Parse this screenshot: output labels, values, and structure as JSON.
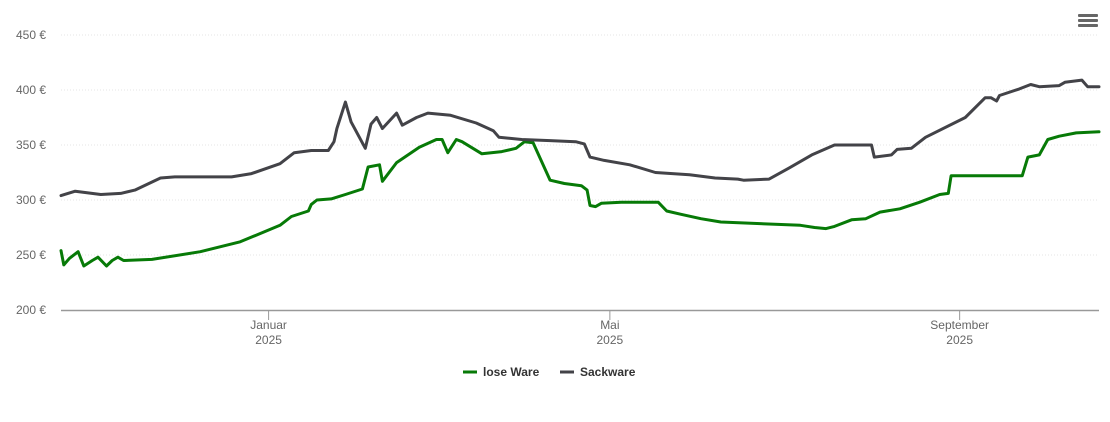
{
  "chart_data": {
    "type": "line",
    "title": "",
    "xlabel": "",
    "ylabel": "",
    "x_unit": "days since 2025-01-01",
    "xlim": [
      -73,
      292
    ],
    "ylim": [
      200,
      450
    ],
    "yticks": [
      200,
      250,
      300,
      350,
      400,
      450
    ],
    "ytick_labels": [
      "200 €",
      "250 €",
      "300 €",
      "350 €",
      "400 €",
      "450 €"
    ],
    "xticks": [
      {
        "x": 0,
        "label1": "Januar",
        "label2": "2025"
      },
      {
        "x": 120,
        "label1": "Mai",
        "label2": "2025"
      },
      {
        "x": 243,
        "label1": "September",
        "label2": "2025"
      }
    ],
    "grid": true,
    "legend_position": "bottom-center",
    "series": [
      {
        "name": "lose Ware",
        "color": "#077a07",
        "points": [
          [
            -73,
            254
          ],
          [
            -72,
            241
          ],
          [
            -70,
            247
          ],
          [
            -67,
            253
          ],
          [
            -65,
            240
          ],
          [
            -62,
            245
          ],
          [
            -60,
            248
          ],
          [
            -57,
            240
          ],
          [
            -55,
            245
          ],
          [
            -53,
            248
          ],
          [
            -51,
            245
          ],
          [
            -41,
            246
          ],
          [
            -24,
            253
          ],
          [
            -10,
            262
          ],
          [
            4,
            277
          ],
          [
            8,
            285
          ],
          [
            14,
            290
          ],
          [
            15,
            296
          ],
          [
            17,
            300
          ],
          [
            22,
            301
          ],
          [
            27,
            305
          ],
          [
            33,
            310
          ],
          [
            35,
            330
          ],
          [
            39,
            332
          ],
          [
            40,
            317
          ],
          [
            45,
            334
          ],
          [
            53,
            348
          ],
          [
            59,
            355
          ],
          [
            61,
            355
          ],
          [
            63,
            343
          ],
          [
            66,
            355
          ],
          [
            68,
            353
          ],
          [
            75,
            342
          ],
          [
            82,
            344
          ],
          [
            87,
            347
          ],
          [
            90,
            353
          ],
          [
            93,
            352
          ],
          [
            96,
            335
          ],
          [
            99,
            318
          ],
          [
            104,
            315
          ],
          [
            110,
            313
          ],
          [
            112,
            309
          ],
          [
            113,
            295
          ],
          [
            115,
            294
          ],
          [
            117,
            297
          ],
          [
            124,
            298
          ],
          [
            137,
            298
          ],
          [
            140,
            290
          ],
          [
            145,
            287
          ],
          [
            152,
            283
          ],
          [
            159,
            280
          ],
          [
            187,
            277
          ],
          [
            192,
            275
          ],
          [
            196,
            274
          ],
          [
            199,
            276
          ],
          [
            205,
            282
          ],
          [
            210,
            283
          ],
          [
            215,
            289
          ],
          [
            222,
            292
          ],
          [
            229,
            298
          ],
          [
            236,
            305
          ],
          [
            239,
            306
          ],
          [
            240,
            322
          ],
          [
            265,
            322
          ],
          [
            267,
            339
          ],
          [
            271,
            341
          ],
          [
            274,
            355
          ],
          [
            278,
            358
          ],
          [
            284,
            361
          ],
          [
            292,
            362
          ]
        ]
      },
      {
        "name": "Sackware",
        "color": "#434348",
        "points": [
          [
            -73,
            304
          ],
          [
            -68,
            308
          ],
          [
            -59,
            305
          ],
          [
            -52,
            306
          ],
          [
            -47,
            309
          ],
          [
            -38,
            320
          ],
          [
            -33,
            321
          ],
          [
            -13,
            321
          ],
          [
            -6,
            324
          ],
          [
            4,
            333
          ],
          [
            9,
            343
          ],
          [
            15,
            345
          ],
          [
            21,
            345
          ],
          [
            23,
            353
          ],
          [
            24,
            365
          ],
          [
            27,
            389
          ],
          [
            29,
            371
          ],
          [
            34,
            347
          ],
          [
            36,
            369
          ],
          [
            38,
            375
          ],
          [
            40,
            365
          ],
          [
            45,
            379
          ],
          [
            47,
            368
          ],
          [
            52,
            375
          ],
          [
            56,
            379
          ],
          [
            64,
            377
          ],
          [
            73,
            370
          ],
          [
            79,
            363
          ],
          [
            81,
            357
          ],
          [
            89,
            355
          ],
          [
            99,
            354
          ],
          [
            108,
            353
          ],
          [
            111,
            351
          ],
          [
            113,
            339
          ],
          [
            118,
            336
          ],
          [
            127,
            332
          ],
          [
            136,
            325
          ],
          [
            148,
            323
          ],
          [
            157,
            320
          ],
          [
            165,
            319
          ],
          [
            167,
            318
          ],
          [
            176,
            319
          ],
          [
            183,
            329
          ],
          [
            191,
            341
          ],
          [
            199,
            350
          ],
          [
            212,
            350
          ],
          [
            213,
            339
          ],
          [
            219,
            341
          ],
          [
            221,
            346
          ],
          [
            226,
            347
          ],
          [
            231,
            357
          ],
          [
            245,
            375
          ],
          [
            252,
            393
          ],
          [
            254,
            393
          ],
          [
            256,
            390
          ],
          [
            257,
            395
          ],
          [
            264,
            401
          ],
          [
            268,
            405
          ],
          [
            271,
            403
          ],
          [
            278,
            404
          ],
          [
            280,
            407
          ],
          [
            286,
            409
          ],
          [
            288,
            403
          ],
          [
            292,
            403
          ]
        ]
      }
    ]
  }
}
